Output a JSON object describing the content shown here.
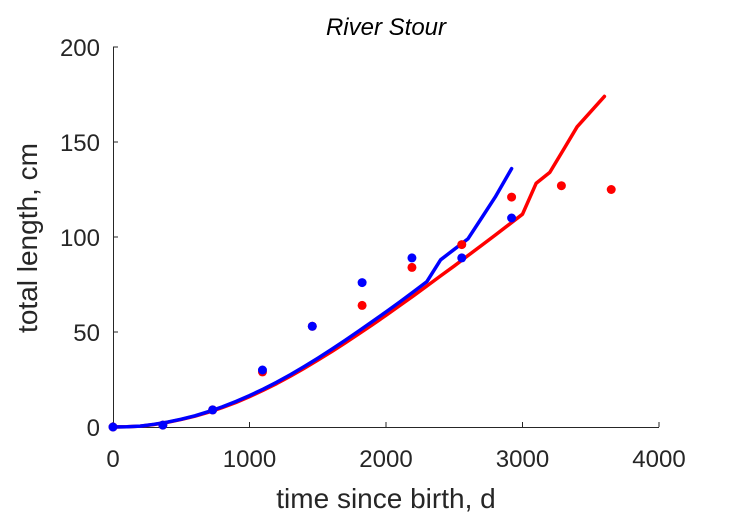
{
  "chart_data": {
    "type": "scatter",
    "title": "River Stour",
    "xlabel": "time since birth, d",
    "ylabel": "total length, cm",
    "xlim": [
      0,
      4000
    ],
    "ylim": [
      0,
      200
    ],
    "xticks": [
      0,
      1000,
      2000,
      3000,
      4000
    ],
    "yticks": [
      0,
      50,
      100,
      150,
      200
    ],
    "xtick_labels": [
      "0",
      "1000",
      "2000",
      "3000",
      "4000"
    ],
    "ytick_labels": [
      "0",
      "50",
      "100",
      "150",
      "200"
    ],
    "grid": false,
    "legend": "none",
    "series": [
      {
        "kind": "points",
        "color": "#ff0000",
        "x": [
          0,
          365,
          730,
          1095,
          1460,
          1825,
          2190,
          2555,
          2920,
          3285,
          3650
        ],
        "y": [
          0,
          1,
          9,
          29,
          53,
          64,
          84,
          96,
          121,
          127,
          125
        ]
      },
      {
        "kind": "points",
        "color": "#0000ff",
        "x": [
          0,
          365,
          730,
          1095,
          1460,
          1825,
          2190,
          2555,
          2920
        ],
        "y": [
          0,
          1,
          9,
          30,
          53,
          76,
          89,
          89,
          110
        ]
      },
      {
        "kind": "line",
        "color": "#ff0000",
        "x": [
          0,
          100,
          200,
          300,
          400,
          500,
          600,
          700,
          800,
          900,
          1000,
          1100,
          1200,
          1300,
          1400,
          1500,
          1600,
          1700,
          1800,
          1900,
          2000,
          2100,
          2200,
          2300,
          2400,
          2500,
          2600,
          2700,
          2800,
          2900,
          3000,
          3100,
          3200,
          3300,
          3400,
          3500,
          3600
        ],
        "y": [
          0,
          0.1,
          0.5,
          1.3,
          2.5,
          4.0,
          5.7,
          7.8,
          10.2,
          12.9,
          16.0,
          19.3,
          22.9,
          26.8,
          30.9,
          35.2,
          39.6,
          44.2,
          49.0,
          53.8,
          58.8,
          63.9,
          69.0,
          74.2,
          79.5,
          84.8,
          90.2,
          95.6,
          101.0,
          106.5,
          112.0,
          128.3,
          134.0,
          146.0,
          158.0,
          166.0,
          174.0
        ]
      },
      {
        "kind": "line",
        "color": "#0000ff",
        "x": [
          0,
          100,
          200,
          300,
          400,
          500,
          600,
          700,
          800,
          900,
          1000,
          1100,
          1200,
          1300,
          1400,
          1500,
          1600,
          1700,
          1800,
          1900,
          2000,
          2100,
          2200,
          2300,
          2400,
          2500,
          2600,
          2700,
          2800,
          2920
        ],
        "y": [
          0,
          0.1,
          0.5,
          1.4,
          2.6,
          4.1,
          5.9,
          8.1,
          10.6,
          13.4,
          16.5,
          19.9,
          23.6,
          27.6,
          31.8,
          36.2,
          40.8,
          45.6,
          50.5,
          55.5,
          60.6,
          65.8,
          71.1,
          76.5,
          88.0,
          93.5,
          99.0,
          110.0,
          121.0,
          136.0
        ]
      }
    ]
  }
}
